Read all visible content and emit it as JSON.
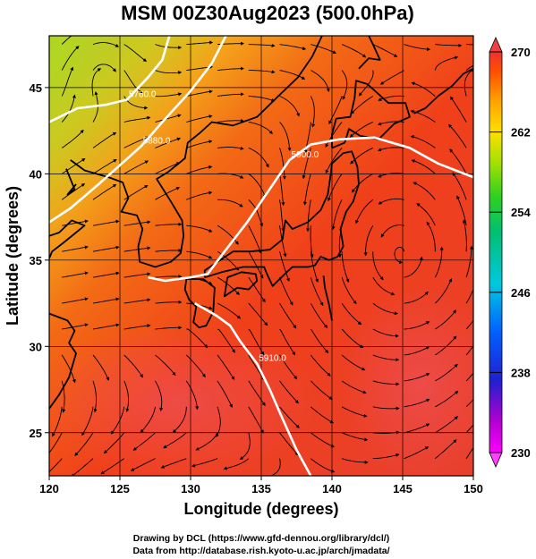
{
  "title": "MSM 00Z30Aug2023 (500.0hPa)",
  "x_axis": {
    "label": "Longitude (degrees)",
    "range": [
      120,
      150
    ],
    "ticks": [
      "120",
      "125",
      "130",
      "135",
      "140",
      "145",
      "150"
    ]
  },
  "y_axis": {
    "label": "Latitude  (degrees)",
    "range": [
      22.5,
      48
    ],
    "ticks": [
      "25",
      "30",
      "35",
      "40",
      "45"
    ]
  },
  "colorbar": {
    "range": [
      230,
      270
    ],
    "ticks": [
      "230",
      "238",
      "246",
      "254",
      "262",
      "270"
    ]
  },
  "contours": [
    {
      "label": "5760.0",
      "value": 5760
    },
    {
      "label": "5880.0",
      "value": 5880
    },
    {
      "label": "5900.0",
      "value": 5900
    },
    {
      "label": "5910.0",
      "value": 5910
    }
  ],
  "features": {
    "low_center": "lon 123.5, lat 46.5",
    "high_center": "lon 145, lat 34.5"
  },
  "credits": {
    "line1": "Drawing by DCL (https://www.gfd-dennou.org/library/dcl/)",
    "line2": "Data from http://database.rish.kyoto-u.ac.jp/arch/jmadata/"
  }
}
